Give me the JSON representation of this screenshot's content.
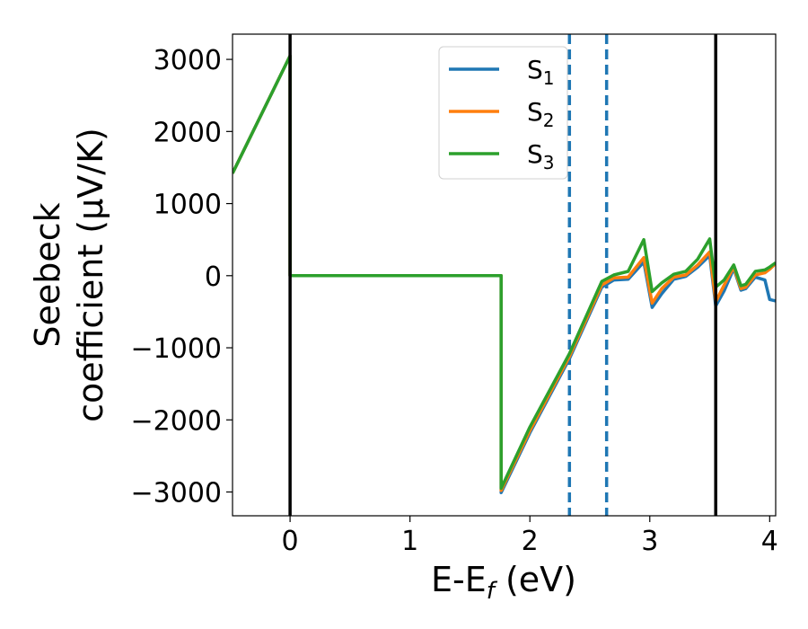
{
  "chart_data": {
    "type": "line",
    "xlabel": "E-E",
    "xlabel_sub": "f",
    "xlabel_unit": " (eV)",
    "ylabel_line1": "Seebeck",
    "ylabel_line2": "coefficient  (μV/K)",
    "xlim": [
      -0.48,
      4.05
    ],
    "ylim": [
      -3330,
      3350
    ],
    "xticks": [
      0,
      1,
      2,
      3,
      4
    ],
    "xtick_labels": [
      "0",
      "1",
      "2",
      "3",
      "4"
    ],
    "yticks": [
      3000,
      2000,
      1000,
      0,
      -1000,
      -2000,
      -3000
    ],
    "ytick_labels": [
      "3000",
      "2000",
      "1000",
      "0",
      "−1000",
      "−2000",
      "−3000"
    ],
    "grid": false,
    "legend_position": "top-center",
    "vlines_solid": [
      0,
      3.55
    ],
    "vlines_dashed": [
      2.33,
      2.64
    ],
    "series": [
      {
        "name": "S",
        "sub": "1",
        "color": "#1f77b4",
        "x": [
          -0.48,
          0,
          0,
          1.76,
          1.76,
          2.0,
          2.33,
          2.6,
          2.7,
          2.82,
          2.95,
          3.02,
          3.1,
          3.2,
          3.3,
          3.4,
          3.5,
          3.55,
          3.62,
          3.7,
          3.76,
          3.8,
          3.88,
          3.96,
          4.0,
          4.05
        ],
        "y": [
          1420,
          3050,
          0,
          0,
          -3010,
          -2180,
          -1150,
          -160,
          -60,
          -50,
          190,
          -440,
          -250,
          -50,
          -10,
          120,
          280,
          -420,
          -210,
          100,
          -200,
          -180,
          -20,
          -60,
          -330,
          -350
        ]
      },
      {
        "name": "S",
        "sub": "2",
        "color": "#ff7f0e",
        "x": [
          -0.48,
          0,
          0,
          1.76,
          1.76,
          2.0,
          2.33,
          2.6,
          2.7,
          2.82,
          2.95,
          3.02,
          3.1,
          3.2,
          3.3,
          3.4,
          3.5,
          3.55,
          3.62,
          3.7,
          3.76,
          3.8,
          3.88,
          3.96,
          4.0,
          4.05
        ],
        "y": [
          1420,
          3050,
          0,
          0,
          -2980,
          -2150,
          -1120,
          -130,
          -30,
          -20,
          250,
          -380,
          -180,
          -20,
          10,
          150,
          330,
          -360,
          -130,
          120,
          -180,
          -160,
          10,
          40,
          90,
          170
        ]
      },
      {
        "name": "S",
        "sub": "3",
        "color": "#2ca02c",
        "x": [
          -0.48,
          0,
          0,
          1.76,
          1.76,
          2.0,
          2.33,
          2.6,
          2.7,
          2.82,
          2.95,
          3.02,
          3.1,
          3.2,
          3.3,
          3.4,
          3.5,
          3.55,
          3.62,
          3.7,
          3.76,
          3.8,
          3.88,
          3.96,
          4.0,
          4.05
        ],
        "y": [
          1420,
          3050,
          0,
          0,
          -2950,
          -2100,
          -1080,
          -80,
          10,
          60,
          500,
          -220,
          -100,
          20,
          60,
          230,
          510,
          -160,
          -60,
          150,
          -140,
          -120,
          60,
          80,
          120,
          180
        ]
      }
    ]
  }
}
